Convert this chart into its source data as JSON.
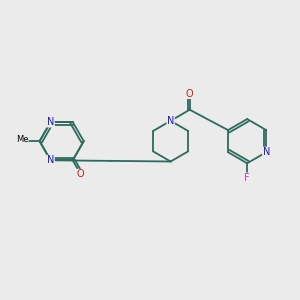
{
  "background_color": "#ebebeb",
  "bond_color": "#2d6b5e",
  "atom_colors": {
    "N": "#1a1acc",
    "O": "#cc1a1a",
    "F": "#cc44aa",
    "C": "#000000"
  },
  "figsize": [
    3.0,
    3.0
  ],
  "dpi": 100
}
